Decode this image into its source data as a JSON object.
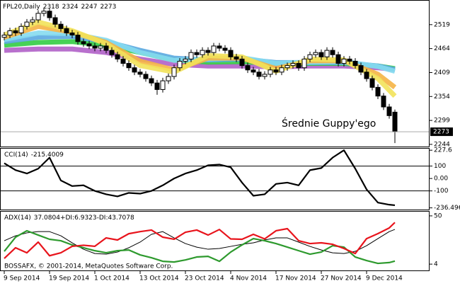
{
  "chart_data": [
    {
      "type": "candlestick",
      "title": "FPL20,Daily",
      "open": [
        2490,
        2495,
        2505,
        2500,
        2515,
        2525,
        2530,
        2545,
        2550,
        2535,
        2520,
        2510,
        2500,
        2495,
        2480,
        2475,
        2470,
        2465,
        2470,
        2460,
        2450,
        2440,
        2430,
        2420,
        2410,
        2405,
        2395,
        2385,
        2370,
        2390,
        2400,
        2420,
        2435,
        2440,
        2455,
        2450,
        2460,
        2455,
        2470,
        2465,
        2460,
        2445,
        2440,
        2425,
        2415,
        2410,
        2400,
        2405,
        2415,
        2410,
        2420,
        2425,
        2430,
        2420,
        2440,
        2450,
        2455,
        2445,
        2460,
        2450,
        2430,
        2440,
        2435,
        2425,
        2410,
        2395,
        2375,
        2355,
        2330,
        2318
      ],
      "high": [
        2502,
        2512,
        2512,
        2522,
        2532,
        2537,
        2552,
        2557,
        2557,
        2542,
        2527,
        2517,
        2507,
        2502,
        2487,
        2482,
        2477,
        2477,
        2477,
        2467,
        2457,
        2447,
        2437,
        2427,
        2417,
        2412,
        2402,
        2392,
        2397,
        2407,
        2427,
        2442,
        2447,
        2462,
        2462,
        2467,
        2467,
        2477,
        2477,
        2472,
        2467,
        2452,
        2447,
        2432,
        2422,
        2417,
        2412,
        2422,
        2422,
        2427,
        2432,
        2437,
        2437,
        2447,
        2457,
        2462,
        2462,
        2467,
        2467,
        2457,
        2447,
        2447,
        2442,
        2432,
        2417,
        2402,
        2382,
        2362,
        2337,
        2324
      ],
      "low": [
        2483,
        2488,
        2493,
        2493,
        2508,
        2518,
        2523,
        2538,
        2528,
        2513,
        2503,
        2493,
        2488,
        2473,
        2468,
        2463,
        2458,
        2458,
        2453,
        2443,
        2433,
        2423,
        2413,
        2403,
        2398,
        2388,
        2378,
        2358,
        2363,
        2383,
        2393,
        2413,
        2428,
        2433,
        2443,
        2443,
        2448,
        2448,
        2458,
        2453,
        2438,
        2433,
        2418,
        2408,
        2403,
        2393,
        2393,
        2398,
        2403,
        2403,
        2413,
        2418,
        2413,
        2413,
        2433,
        2443,
        2438,
        2438,
        2443,
        2423,
        2423,
        2428,
        2418,
        2403,
        2388,
        2368,
        2348,
        2323,
        2303,
        2247
      ],
      "close": [
        2495,
        2505,
        2500,
        2515,
        2525,
        2530,
        2545,
        2550,
        2535,
        2520,
        2510,
        2500,
        2495,
        2480,
        2475,
        2470,
        2465,
        2470,
        2460,
        2450,
        2440,
        2430,
        2420,
        2410,
        2405,
        2395,
        2385,
        2370,
        2390,
        2400,
        2420,
        2435,
        2440,
        2455,
        2450,
        2460,
        2455,
        2470,
        2465,
        2460,
        2445,
        2440,
        2425,
        2415,
        2410,
        2400,
        2405,
        2415,
        2410,
        2420,
        2425,
        2430,
        2420,
        2440,
        2450,
        2455,
        2445,
        2460,
        2450,
        2430,
        2440,
        2435,
        2425,
        2410,
        2395,
        2375,
        2355,
        2330,
        2310,
        2273
      ],
      "up_color": "#ffffff",
      "down_color": "#000000",
      "ribbon_x": [
        0,
        6,
        12,
        18,
        24,
        30,
        36,
        42,
        48,
        54,
        60,
        66,
        69
      ],
      "ribbons": [
        {
          "color": "#b060c8",
          "values": [
            2460,
            2463,
            2463,
            2455,
            2440,
            2428,
            2424,
            2424,
            2422,
            2424,
            2424,
            2420,
            2416
          ]
        },
        {
          "color": "#33cc44",
          "values": [
            2472,
            2478,
            2480,
            2472,
            2455,
            2438,
            2433,
            2434,
            2430,
            2430,
            2430,
            2424,
            2418
          ]
        },
        {
          "color": "#5aa8e0",
          "values": [
            2480,
            2490,
            2492,
            2480,
            2460,
            2442,
            2438,
            2440,
            2432,
            2432,
            2432,
            2424,
            2416
          ]
        },
        {
          "color": "#86dcef",
          "values": [
            2485,
            2500,
            2498,
            2483,
            2455,
            2437,
            2440,
            2443,
            2430,
            2433,
            2434,
            2423,
            2412
          ]
        },
        {
          "color": "#f5b445",
          "values": [
            2490,
            2515,
            2502,
            2478,
            2435,
            2415,
            2442,
            2442,
            2418,
            2436,
            2436,
            2405,
            2375
          ]
        },
        {
          "color": "#f2e25a",
          "values": [
            2495,
            2525,
            2505,
            2475,
            2425,
            2410,
            2448,
            2445,
            2412,
            2440,
            2438,
            2395,
            2355
          ]
        }
      ],
      "annotation": "Średnie Guppy'ego",
      "ylim": [
        2239,
        2574
      ],
      "yticks": [
        2519,
        2464,
        2409,
        2354,
        2299,
        2244
      ]
    },
    {
      "type": "line",
      "title": "CCI(14)",
      "x": [
        0,
        2,
        4,
        6,
        8,
        10,
        12,
        14,
        16,
        18,
        20,
        22,
        24,
        26,
        28,
        30,
        32,
        34,
        36,
        38,
        40,
        42,
        44,
        46,
        48,
        50,
        52,
        54,
        56,
        58,
        60,
        62,
        64,
        66,
        68,
        69
      ],
      "series": [
        {
          "color": "#000000",
          "values": [
            123,
            67,
            40,
            79,
            168,
            -16,
            -61,
            -55,
            -100,
            -127,
            -144,
            -116,
            -122,
            -100,
            -55,
            0,
            40,
            67,
            106,
            112,
            90,
            -33,
            -139,
            -127,
            -44,
            -33,
            -55,
            67,
            84,
            168,
            227.6,
            79,
            -88,
            -194,
            -211,
            -215.4009
          ]
        }
      ],
      "ylim": [
        -250,
        240
      ],
      "yticks": [
        227.6,
        100,
        {
          "value": 0,
          "label": "0.00"
        },
        -100,
        -236.496
      ],
      "levels": [
        100,
        -100
      ]
    },
    {
      "type": "line",
      "title": "ADX(14)",
      "x": [
        0,
        2,
        4,
        6,
        8,
        10,
        12,
        14,
        16,
        18,
        20,
        22,
        24,
        26,
        28,
        30,
        32,
        34,
        36,
        38,
        40,
        42,
        44,
        46,
        48,
        50,
        52,
        54,
        56,
        58,
        60,
        62,
        64,
        66,
        68,
        69
      ],
      "series": [
        {
          "color": "#000000",
          "values": [
            26.3,
            31,
            33.8,
            35,
            35,
            31,
            24.3,
            18.2,
            14.1,
            13.5,
            15.5,
            19.6,
            25,
            32.4,
            35,
            29,
            23.6,
            20.2,
            18.2,
            18.9,
            20.9,
            22.9,
            24.3,
            27,
            29,
            29,
            25,
            20.9,
            17.5,
            14.8,
            14.1,
            16.2,
            21.6,
            28.3,
            35,
            37.0804
          ]
        },
        {
          "name": "+DI:",
          "color": "#2e9a2e",
          "values": [
            16.2,
            29.7,
            35.8,
            31.7,
            27.7,
            26.3,
            22.3,
            19.6,
            16.8,
            14.8,
            16.8,
            17.5,
            12.8,
            10.1,
            6.7,
            6,
            8,
            10.8,
            11.4,
            6.7,
            15.5,
            22.3,
            28.3,
            26.3,
            23.6,
            20.2,
            16.8,
            13.5,
            15.5,
            21.6,
            20.2,
            10.8,
            7.4,
            4.7,
            5.5,
            6.9323
          ]
        },
        {
          "name": "-DI:",
          "color": "#e8141c",
          "values": [
            9.4,
            19.6,
            14.8,
            25,
            12,
            14.8,
            21,
            22,
            21,
            29,
            27,
            33,
            35,
            36.5,
            29.7,
            27.7,
            34.4,
            36.5,
            31.7,
            37,
            28,
            27.7,
            32.4,
            28,
            35.8,
            37.8,
            26.3,
            23.6,
            24.3,
            22.9,
            18.9,
            14.1,
            28.3,
            33.1,
            38.5,
            43.7078
          ]
        }
      ],
      "ylim": [
        -2,
        54
      ],
      "yticks": [
        50,
        4
      ],
      "copyright": "BOSSAFX, © 2001-2014, MetaQuotes Software Corp.",
      "xticks": [
        {
          "value": 0,
          "label": "9 Sep 2014"
        },
        {
          "value": 8,
          "label": "19 Sep 2014"
        },
        {
          "value": 16,
          "label": "1 Oct 2014"
        },
        {
          "value": 24,
          "label": "13 Oct 2014"
        },
        {
          "value": 32,
          "label": "23 Oct 2014"
        },
        {
          "value": 40,
          "label": "4 Nov 2014"
        },
        {
          "value": 48,
          "label": "17 Nov 2014"
        },
        {
          "value": 56,
          "label": "27 Nov 2014"
        },
        {
          "value": 64,
          "label": "9 Dec 2014"
        }
      ]
    }
  ]
}
